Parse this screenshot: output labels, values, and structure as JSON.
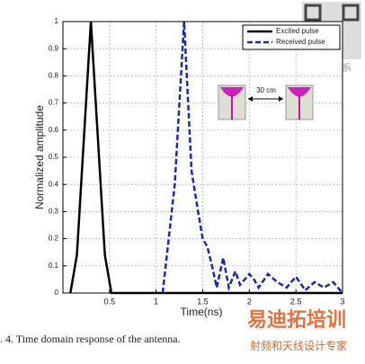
{
  "chart_data": {
    "type": "line",
    "x_label": "Time(ns)",
    "y_label": "Normalized amplitude",
    "xlim": [
      0,
      3
    ],
    "xticks": [
      0.5,
      1,
      1.5,
      2,
      2.5,
      3
    ],
    "ylim": [
      0,
      1
    ],
    "yticks": [
      0,
      0.1,
      0.2,
      0.3,
      0.4,
      0.5,
      0.6,
      0.7,
      0.8,
      0.9,
      1
    ],
    "grid": true,
    "legend": "upper right",
    "series": [
      {
        "name": "Excited pulse",
        "color": "#000000",
        "dash": false,
        "x": [
          0.08,
          0.15,
          0.3,
          0.45,
          0.52,
          1.1,
          3.0
        ],
        "values": [
          0,
          0.14,
          1,
          0.14,
          0,
          0,
          0
        ]
      },
      {
        "name": "Received pulse",
        "color": "#1a2aa8",
        "dash": true,
        "x": [
          1.07,
          1.2,
          1.3,
          1.38,
          1.45,
          1.5,
          1.55,
          1.6,
          1.65,
          1.72,
          1.78,
          1.85,
          1.9,
          1.95,
          2.0,
          2.05,
          2.1,
          2.2,
          2.3,
          2.4,
          2.5,
          2.6,
          2.7,
          2.8,
          2.9,
          3.0
        ],
        "values": [
          0,
          0.4,
          1,
          0.45,
          0.3,
          0.2,
          0.17,
          0.1,
          0.02,
          0.13,
          0.02,
          0.08,
          0.03,
          0.05,
          0.07,
          0.05,
          0.02,
          0.07,
          0.04,
          0.02,
          0.06,
          0.01,
          0.04,
          0.02,
          0.04,
          0
        ]
      }
    ],
    "annotation": "30 cm",
    "caption": ". 4.   Time domain response of the antenna.",
    "watermarks": [
      "微信联系",
      "易迪拓培训",
      "射频和天线设计专家"
    ]
  }
}
